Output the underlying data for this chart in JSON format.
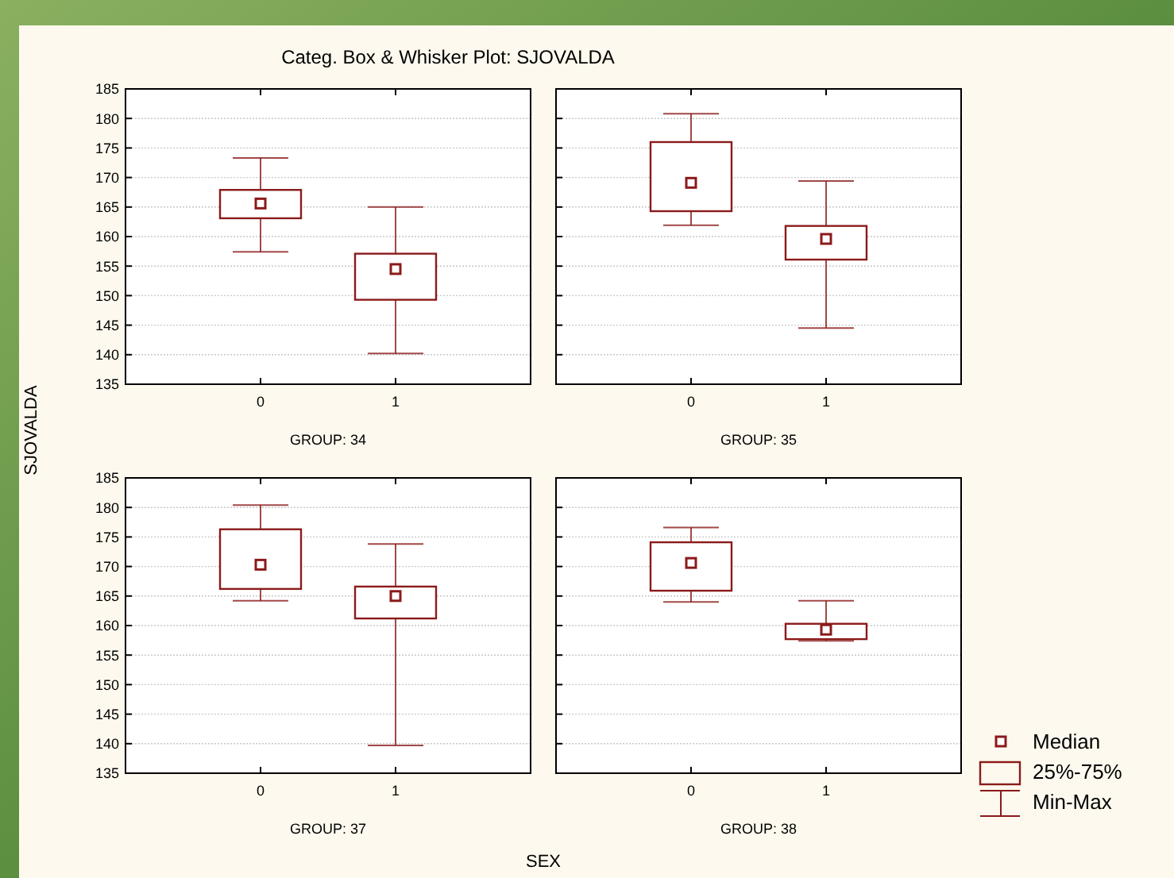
{
  "chart_data": [
    {
      "type": "box",
      "title": "Categ. Box & Whisker Plot: SJOVALDA",
      "ylabel": "SJOVALDA",
      "xlabel": "GROUP: 34",
      "annotations": [
        "SEX"
      ],
      "categories": [
        "0",
        "1"
      ],
      "color": "#8b1a1a",
      "marker": "square",
      "grid": "y",
      "ylim": [
        135,
        185
      ],
      "yticks": [
        135,
        140,
        145,
        150,
        155,
        160,
        165,
        170,
        175,
        180,
        185
      ],
      "boxes": [
        {
          "low": 157.4,
          "q1": 163.1,
          "median": 165.6,
          "q3": 167.9,
          "high": 173.3
        },
        {
          "low": 140.2,
          "q1": 149.3,
          "median": 154.5,
          "q3": 157.1,
          "high": 165.0
        }
      ]
    },
    {
      "type": "box",
      "xlabel": "GROUP: 35",
      "categories": [
        "0",
        "1"
      ],
      "color": "#8b1a1a",
      "marker": "square",
      "grid": "y",
      "tick_labels": "x",
      "ylim": [
        135,
        185
      ],
      "yticks": [
        135,
        140,
        145,
        150,
        155,
        160,
        165,
        170,
        175,
        180,
        185
      ],
      "boxes": [
        {
          "low": 161.9,
          "q1": 164.3,
          "median": 169.1,
          "q3": 176.0,
          "high": 180.8
        },
        {
          "low": 144.5,
          "q1": 156.1,
          "median": 159.6,
          "q3": 161.8,
          "high": 169.4
        }
      ]
    },
    {
      "type": "box",
      "xlabel": "GROUP: 37",
      "categories": [
        "0",
        "1"
      ],
      "color": "#8b1a1a",
      "marker": "square",
      "grid": "y",
      "ylim": [
        135,
        185
      ],
      "yticks": [
        135,
        140,
        145,
        150,
        155,
        160,
        165,
        170,
        175,
        180,
        185
      ],
      "boxes": [
        {
          "low": 164.2,
          "q1": 166.2,
          "median": 170.3,
          "q3": 176.3,
          "high": 180.4
        },
        {
          "low": 139.7,
          "q1": 161.2,
          "median": 165.0,
          "q3": 166.6,
          "high": 173.8
        }
      ]
    },
    {
      "type": "box",
      "xlabel": "GROUP: 38",
      "annotations": [
        "Median",
        "25%-75%",
        "Min-Max"
      ],
      "categories": [
        "0",
        "1"
      ],
      "color": "#8b1a1a",
      "marker": "square",
      "grid": "y",
      "tick_labels": "x",
      "ylim": [
        135,
        185
      ],
      "yticks": [
        135,
        140,
        145,
        150,
        155,
        160,
        165,
        170,
        175,
        180,
        185
      ],
      "boxes": [
        {
          "low": 164.0,
          "q1": 165.9,
          "median": 170.6,
          "q3": 174.1,
          "high": 176.6
        },
        {
          "low": 157.4,
          "q1": 157.7,
          "median": 159.3,
          "q3": 160.3,
          "high": 164.2
        }
      ]
    }
  ]
}
